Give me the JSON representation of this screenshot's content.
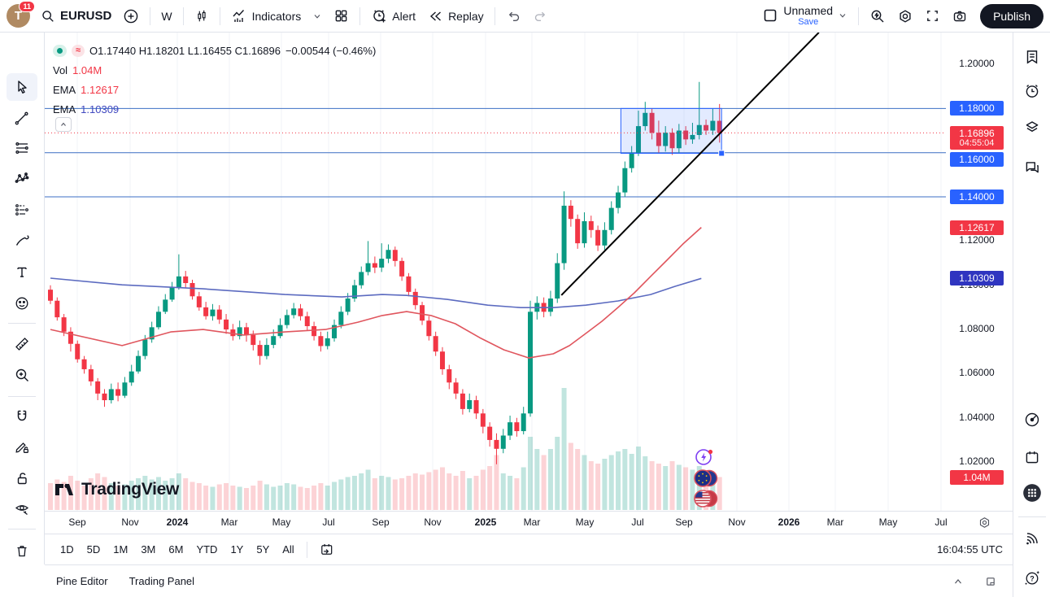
{
  "topbar": {
    "avatar_letter": "T",
    "notification_count": "11",
    "symbol": "EURUSD",
    "interval": "W",
    "indicators_label": "Indicators",
    "alert_label": "Alert",
    "replay_label": "Replay",
    "layout_name": "Unnamed",
    "save_label": "Save",
    "publish_label": "Publish"
  },
  "legend": {
    "ohlc": [
      {
        "k": "O",
        "v": "1.17440"
      },
      {
        "k": "H",
        "v": "1.18201"
      },
      {
        "k": "L",
        "v": "1.16455"
      },
      {
        "k": "C",
        "v": "1.16896"
      }
    ],
    "change": "−0.00544 (−0.46%)",
    "vol_label": "Vol",
    "vol_value": "1.04M",
    "ema1_label": "EMA",
    "ema1_value": "1.12617",
    "ema2_label": "EMA",
    "ema2_value": "1.10309"
  },
  "left_toolbar_icons": [
    "cursor",
    "trend-line",
    "fib-tools",
    "xabcd-pattern",
    "forecast-tools",
    "brush",
    "text",
    "emoji",
    "ruler",
    "zoom-in",
    "magnet",
    "drawing-mode",
    "lock-drawings",
    "hide-drawings",
    "remove-drawings"
  ],
  "right_sidebar_icons": [
    "watchlist",
    "alerts-clock",
    "object-tree",
    "chat",
    "screener-target",
    "calendar",
    "apps-grid",
    "streams",
    "help"
  ],
  "watermark": "TradingView",
  "markers": [
    "economic-event-lightning",
    "eu-flag",
    "us-flag"
  ],
  "price_axis": {
    "labels": [
      {
        "text": "1.20000",
        "price": 1.2
      },
      {
        "text": "1.12000",
        "price": 1.12
      },
      {
        "text": "1.10000",
        "price": 1.1
      },
      {
        "text": "1.08000",
        "price": 1.08
      },
      {
        "text": "1.06000",
        "price": 1.06
      },
      {
        "text": "1.04000",
        "price": 1.04
      },
      {
        "text": "1.02000",
        "price": 1.02
      }
    ],
    "badges": [
      {
        "text": "1.18000",
        "price": 1.18,
        "color": "#2962ff"
      },
      {
        "text": "1.16896",
        "sub": "04:55:04",
        "price": 1.16896,
        "color": "#f23645"
      },
      {
        "text": "1.16000",
        "price": 1.16,
        "color": "#2962ff"
      },
      {
        "text": "1.14000",
        "price": 1.14,
        "color": "#2962ff"
      },
      {
        "text": "1.12617",
        "price": 1.12617,
        "color": "#f23645"
      },
      {
        "text": "1.10309",
        "price": 1.10309,
        "color": "#2f35c0"
      }
    ],
    "volume_badge": {
      "text": "1.04M",
      "color": "#f23645"
    }
  },
  "time_axis": {
    "ticks": [
      {
        "label": "Sep",
        "x": 95
      },
      {
        "label": "Nov",
        "x": 160
      },
      {
        "label": "2024",
        "x": 218,
        "bold": true
      },
      {
        "label": "Mar",
        "x": 282
      },
      {
        "label": "May",
        "x": 346
      },
      {
        "label": "Jul",
        "x": 404
      },
      {
        "label": "Sep",
        "x": 468
      },
      {
        "label": "Nov",
        "x": 532
      },
      {
        "label": "2025",
        "x": 597,
        "bold": true
      },
      {
        "label": "Mar",
        "x": 654
      },
      {
        "label": "May",
        "x": 719
      },
      {
        "label": "Jul",
        "x": 784
      },
      {
        "label": "Sep",
        "x": 841
      },
      {
        "label": "Nov",
        "x": 906
      },
      {
        "label": "2026",
        "x": 970,
        "bold": true
      },
      {
        "label": "Mar",
        "x": 1027
      },
      {
        "label": "May",
        "x": 1092
      },
      {
        "label": "Jul",
        "x": 1157
      }
    ]
  },
  "range_toolbar": {
    "ranges": [
      "1D",
      "5D",
      "1M",
      "3M",
      "6M",
      "YTD",
      "1Y",
      "5Y",
      "All"
    ],
    "clock": "16:04:55 UTC"
  },
  "status_bar": {
    "tabs": [
      "Pine Editor",
      "Trading Panel"
    ]
  },
  "colors": {
    "up": "#089981",
    "down": "#f23645",
    "vol_up": "rgba(8,153,129,0.25)",
    "vol_down": "rgba(242,54,69,0.22)",
    "ema_fast": "#e0565e",
    "ema_slow": "#5c6bc0",
    "hline": "#3c6fc4",
    "trend": "#000000",
    "box_fill": "rgba(41,98,255,0.13)",
    "box_border": "#2962ff",
    "accent": "#2962ff",
    "current_price_line": "#f23645"
  },
  "chart_data": {
    "type": "candlestick",
    "symbol": "EURUSD",
    "timeframe": "W",
    "ylim": [
      1.005,
      1.215
    ],
    "current_price": 1.16896,
    "countdown": "04:55:04",
    "horizontal_lines": [
      1.18,
      1.16,
      1.14
    ],
    "trendline": {
      "t1": 75.6,
      "p1": 1.0955,
      "t2": 113.7,
      "p2": 1.2144
    },
    "box": {
      "t1": 84.4,
      "p_top": 1.18,
      "t2": 99.3,
      "p_bottom": 1.1597
    },
    "candles": [
      [
        1.098,
        1.1,
        1.0915,
        1.093
      ],
      [
        1.093,
        1.0945,
        1.084,
        1.0855
      ],
      [
        1.0855,
        1.087,
        1.077,
        1.079
      ],
      [
        1.079,
        1.081,
        1.07,
        1.0735
      ],
      [
        1.0735,
        1.075,
        1.065,
        1.0665
      ],
      [
        1.0665,
        1.068,
        1.06,
        1.062
      ],
      [
        1.062,
        1.064,
        1.0545,
        1.0565
      ],
      [
        1.0565,
        1.058,
        1.048,
        1.051
      ],
      [
        1.051,
        1.053,
        1.045,
        1.048
      ],
      [
        1.048,
        1.0555,
        1.0465,
        1.053
      ],
      [
        1.053,
        1.056,
        1.0475,
        1.05
      ],
      [
        1.05,
        1.0585,
        1.049,
        1.056
      ],
      [
        1.056,
        1.064,
        1.0545,
        1.061
      ],
      [
        1.061,
        1.0705,
        1.06,
        1.068
      ],
      [
        1.068,
        1.0775,
        1.0665,
        1.0755
      ],
      [
        1.0755,
        1.0835,
        1.074,
        1.081
      ],
      [
        1.081,
        1.0905,
        1.08,
        1.088
      ],
      [
        1.088,
        1.096,
        1.087,
        1.0935
      ],
      [
        1.0935,
        1.1015,
        1.0925,
        1.099
      ],
      [
        1.099,
        1.114,
        1.098,
        1.104
      ],
      [
        1.104,
        1.1065,
        1.099,
        1.101
      ],
      [
        1.101,
        1.1025,
        1.0935,
        1.095
      ],
      [
        1.095,
        1.097,
        1.0885,
        1.09
      ],
      [
        1.09,
        1.0925,
        1.0845,
        1.086
      ],
      [
        1.086,
        1.0915,
        1.084,
        1.089
      ],
      [
        1.089,
        1.091,
        1.0825,
        1.0845
      ],
      [
        1.0845,
        1.087,
        1.078,
        1.08
      ],
      [
        1.08,
        1.0825,
        1.075,
        1.077
      ],
      [
        1.077,
        1.084,
        1.0755,
        1.081
      ],
      [
        1.081,
        1.083,
        1.0745,
        1.0775
      ],
      [
        1.0775,
        1.0795,
        1.0705,
        1.073
      ],
      [
        1.073,
        1.075,
        1.064,
        1.068
      ],
      [
        1.068,
        1.076,
        1.0665,
        1.073
      ],
      [
        1.073,
        1.08,
        1.0715,
        1.077
      ],
      [
        1.077,
        1.085,
        1.076,
        1.082
      ],
      [
        1.082,
        1.089,
        1.0805,
        1.0865
      ],
      [
        1.0865,
        1.092,
        1.085,
        1.0895
      ],
      [
        1.0895,
        1.0915,
        1.084,
        1.086
      ],
      [
        1.086,
        1.088,
        1.0795,
        1.0815
      ],
      [
        1.0815,
        1.0835,
        1.075,
        1.077
      ],
      [
        1.077,
        1.079,
        1.07,
        1.0725
      ],
      [
        1.0725,
        1.079,
        1.071,
        1.076
      ],
      [
        1.076,
        1.0845,
        1.0745,
        1.082
      ],
      [
        1.082,
        1.0905,
        1.0805,
        1.088
      ],
      [
        1.088,
        1.0965,
        1.0865,
        1.094
      ],
      [
        1.094,
        1.1025,
        1.0925,
        1.1
      ],
      [
        1.1,
        1.1085,
        1.0985,
        1.106
      ],
      [
        1.106,
        1.12,
        1.1045,
        1.11
      ],
      [
        1.11,
        1.113,
        1.1055,
        1.108
      ],
      [
        1.108,
        1.119,
        1.106,
        1.112
      ],
      [
        1.112,
        1.1185,
        1.11,
        1.116
      ],
      [
        1.116,
        1.1175,
        1.1085,
        1.111
      ],
      [
        1.111,
        1.1125,
        1.102,
        1.104
      ],
      [
        1.104,
        1.1055,
        1.095,
        1.097
      ],
      [
        1.097,
        1.0985,
        1.089,
        1.091
      ],
      [
        1.091,
        1.0925,
        1.082,
        1.084
      ],
      [
        1.084,
        1.086,
        1.075,
        1.077
      ],
      [
        1.077,
        1.079,
        1.068,
        1.07
      ],
      [
        1.07,
        1.072,
        1.0595,
        1.062
      ],
      [
        1.062,
        1.064,
        1.053,
        1.056
      ],
      [
        1.056,
        1.058,
        1.0485,
        1.051
      ],
      [
        1.051,
        1.053,
        1.0415,
        1.044
      ],
      [
        1.044,
        1.051,
        1.0425,
        1.048
      ],
      [
        1.048,
        1.05,
        1.0395,
        1.042
      ],
      [
        1.042,
        1.044,
        1.033,
        1.036
      ],
      [
        1.036,
        1.038,
        1.027,
        1.03
      ],
      [
        1.03,
        1.033,
        1.019,
        1.026
      ],
      [
        1.026,
        1.035,
        1.024,
        1.032
      ],
      [
        1.032,
        1.041,
        1.03,
        1.038
      ],
      [
        1.038,
        1.04,
        1.0315,
        1.034
      ],
      [
        1.034,
        1.045,
        1.0325,
        1.042
      ],
      [
        1.042,
        1.093,
        1.0405,
        1.088
      ],
      [
        1.088,
        1.095,
        1.0845,
        1.092
      ],
      [
        1.092,
        1.0945,
        1.0855,
        1.088
      ],
      [
        1.088,
        1.0975,
        1.086,
        1.094
      ],
      [
        1.094,
        1.1145,
        1.092,
        1.11
      ],
      [
        1.11,
        1.1425,
        1.107,
        1.136
      ],
      [
        1.136,
        1.1385,
        1.1265,
        1.13
      ],
      [
        1.13,
        1.132,
        1.1165,
        1.119
      ],
      [
        1.119,
        1.133,
        1.117,
        1.129
      ],
      [
        1.129,
        1.1315,
        1.1215,
        1.125
      ],
      [
        1.125,
        1.127,
        1.1155,
        1.118
      ],
      [
        1.118,
        1.1285,
        1.116,
        1.125
      ],
      [
        1.125,
        1.138,
        1.123,
        1.135
      ],
      [
        1.135,
        1.145,
        1.1325,
        1.142
      ],
      [
        1.142,
        1.156,
        1.14,
        1.153
      ],
      [
        1.153,
        1.163,
        1.151,
        1.16
      ],
      [
        1.16,
        1.179,
        1.1585,
        1.172
      ],
      [
        1.172,
        1.183,
        1.17,
        1.178
      ],
      [
        1.178,
        1.18,
        1.166,
        1.169
      ],
      [
        1.169,
        1.1745,
        1.16,
        1.163
      ],
      [
        1.163,
        1.172,
        1.1605,
        1.169
      ],
      [
        1.169,
        1.171,
        1.159,
        1.162
      ],
      [
        1.162,
        1.173,
        1.16,
        1.17
      ],
      [
        1.17,
        1.172,
        1.1635,
        1.166
      ],
      [
        1.166,
        1.1735,
        1.164,
        1.168
      ],
      [
        1.168,
        1.192,
        1.166,
        1.1725
      ],
      [
        1.1725,
        1.175,
        1.168,
        1.17
      ],
      [
        1.17,
        1.18,
        1.168,
        1.1744
      ],
      [
        1.1744,
        1.18201,
        1.16455,
        1.16896
      ]
    ],
    "volumes": [
      0.22,
      0.25,
      0.23,
      0.28,
      0.24,
      0.2,
      0.26,
      0.3,
      0.27,
      0.22,
      0.2,
      0.21,
      0.24,
      0.26,
      0.28,
      0.25,
      0.27,
      0.24,
      0.26,
      0.3,
      0.26,
      0.23,
      0.22,
      0.2,
      0.19,
      0.21,
      0.22,
      0.2,
      0.19,
      0.18,
      0.2,
      0.24,
      0.21,
      0.19,
      0.2,
      0.22,
      0.21,
      0.19,
      0.18,
      0.2,
      0.22,
      0.2,
      0.23,
      0.25,
      0.27,
      0.28,
      0.3,
      0.33,
      0.26,
      0.28,
      0.27,
      0.25,
      0.26,
      0.28,
      0.3,
      0.29,
      0.31,
      0.33,
      0.35,
      0.3,
      0.28,
      0.32,
      0.26,
      0.28,
      0.33,
      0.36,
      0.45,
      0.3,
      0.28,
      0.26,
      0.35,
      0.6,
      0.5,
      0.45,
      0.5,
      0.6,
      1.0,
      0.55,
      0.5,
      0.45,
      0.4,
      0.38,
      0.42,
      0.45,
      0.48,
      0.5,
      0.46,
      0.52,
      0.44,
      0.4,
      0.38,
      0.36,
      0.4,
      0.37,
      0.35,
      0.33,
      0.36,
      0.3,
      0.28,
      0.27
    ],
    "ema_fast": [
      [
        0,
        1.08
      ],
      [
        10.6,
        1.0727
      ],
      [
        17.8,
        1.0789
      ],
      [
        22.6,
        1.08
      ],
      [
        28.6,
        1.0775
      ],
      [
        34.7,
        1.0789
      ],
      [
        40.7,
        1.08
      ],
      [
        45.5,
        1.0833
      ],
      [
        49.1,
        1.0863
      ],
      [
        52.7,
        1.0881
      ],
      [
        56.3,
        1.0863
      ],
      [
        59.9,
        1.0826
      ],
      [
        63.5,
        1.0763
      ],
      [
        67.1,
        1.0708
      ],
      [
        70.8,
        1.0671
      ],
      [
        74.4,
        1.069
      ],
      [
        76.8,
        1.0727
      ],
      [
        79.2,
        1.0782
      ],
      [
        81.6,
        1.0837
      ],
      [
        84.0,
        1.09
      ],
      [
        86.4,
        1.0966
      ],
      [
        88.8,
        1.104
      ],
      [
        91.2,
        1.1113
      ],
      [
        93.6,
        1.1187
      ],
      [
        96.3,
        1.12617
      ]
    ],
    "ema_slow": [
      [
        0,
        1.1032
      ],
      [
        10.6,
        1.1002
      ],
      [
        22.6,
        1.0984
      ],
      [
        34.7,
        1.0958
      ],
      [
        43.1,
        1.0947
      ],
      [
        49.1,
        1.0958
      ],
      [
        52.7,
        1.0954
      ],
      [
        58.7,
        1.0936
      ],
      [
        64.7,
        1.091
      ],
      [
        69.6,
        1.0899
      ],
      [
        74.4,
        1.0899
      ],
      [
        79.2,
        1.091
      ],
      [
        84.0,
        1.0929
      ],
      [
        88.8,
        1.0958
      ],
      [
        92.4,
        1.0995
      ],
      [
        96.3,
        1.10309
      ]
    ]
  }
}
